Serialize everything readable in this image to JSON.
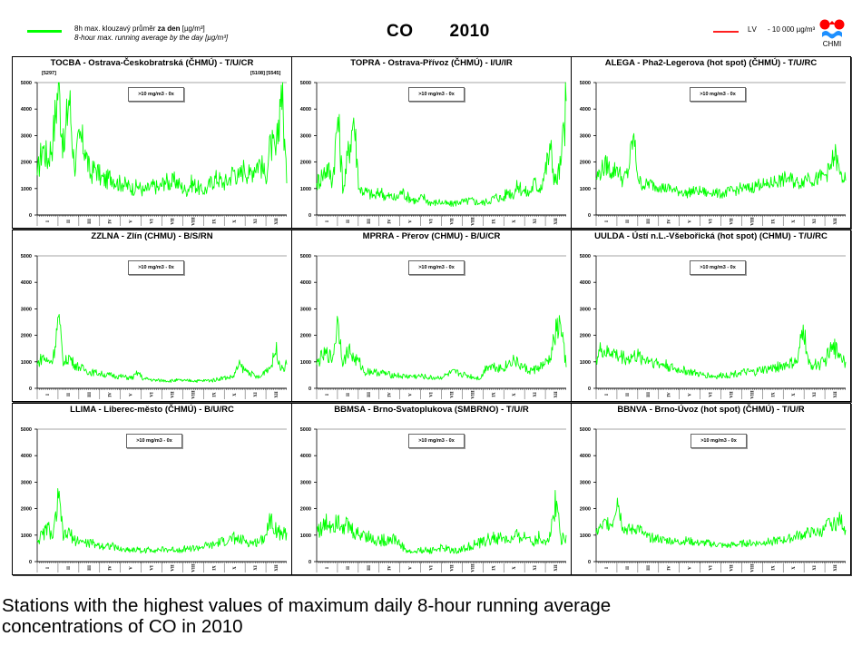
{
  "header": {
    "legend_line1_prefix": "8h max. klouzavý průměr ",
    "legend_line1_bold": "za den",
    "legend_line1_suffix": " [µg/m³]",
    "legend_line2": "8-hour max. running average  by the day  [µg/m³]",
    "pollutant": "CO",
    "year": "2010",
    "lv_label": "LV",
    "lv_value": "- 10 000 µg/m³",
    "logo_text": "CHMI",
    "series_color": "#00ff00",
    "lv_color": "#ff2020",
    "logo_red": "#ff0000",
    "logo_blue": "#1e90ff"
  },
  "caption": {
    "line1": "Stations with the highest values of maximum daily 8-hour running average",
    "line2": "concentrations of CO in 2010"
  },
  "chart_data": [
    {
      "type": "line",
      "title": "TOCBA - Ostrava-Českobratrská (ČHMÚ) - T/U/CR",
      "ylim": [
        0,
        5000
      ],
      "yticks": [
        "0",
        "1000",
        "2000",
        "3000",
        "4000",
        "5000"
      ],
      "xticks": [
        "I",
        "II",
        "III",
        "IV",
        "V",
        "VI",
        "VII",
        "VIII",
        "IX",
        "X",
        "XI",
        "XII"
      ],
      "box_text": ">10 mg/m3 - 0x",
      "annotations": [
        "[5297]",
        "[5108] [5545]"
      ],
      "series": [
        {
          "name": "8h max. running average",
          "noise": 0.28,
          "values": [
            1500,
            2600,
            2100,
            2900,
            5000,
            2300,
            4600,
            1800,
            2900,
            2500,
            1500,
            1800,
            1400,
            1300,
            1500,
            1200,
            1200,
            1100,
            1000,
            1100,
            900,
            1000,
            1100,
            1000,
            1300,
            1200,
            1300,
            1100,
            900,
            1200,
            1100,
            900,
            1000,
            1300,
            1400,
            1200,
            1300,
            1700,
            1400,
            1800,
            1500,
            1900,
            2000,
            1400,
            2700,
            2200,
            5000,
            1200
          ]
        }
      ]
    },
    {
      "type": "line",
      "title": "TOPRA - Ostrava-Přívoz (ČHMÚ) - I/U/IR",
      "ylim": [
        0,
        5000
      ],
      "yticks": [
        "0",
        "1000",
        "2000",
        "3000",
        "4000",
        "5000"
      ],
      "xticks": [
        "I",
        "II",
        "III",
        "IV",
        "V",
        "VI",
        "VII",
        "VIII",
        "IX",
        "X",
        "XI",
        "XII"
      ],
      "box_text": ">10 mg/m3 - 0x",
      "series": [
        {
          "name": "8h max. running average",
          "noise": 0.3,
          "values": [
            1200,
            1500,
            1800,
            1300,
            3700,
            900,
            2400,
            3700,
            1000,
            900,
            800,
            700,
            900,
            700,
            700,
            600,
            900,
            700,
            600,
            500,
            700,
            500,
            450,
            500,
            450,
            400,
            450,
            500,
            500,
            550,
            500,
            450,
            500,
            600,
            700,
            600,
            900,
            800,
            1100,
            900,
            800,
            1200,
            1000,
            1600,
            2500,
            1200,
            1900,
            4300
          ]
        }
      ]
    },
    {
      "type": "line",
      "title": "ALEGA - Pha2-Legerova (hot spot) (ČHMÚ) - T/U/RC",
      "ylim": [
        0,
        5000
      ],
      "yticks": [
        "0",
        "1000",
        "2000",
        "3000",
        "4000",
        "5000"
      ],
      "xticks": [
        "I",
        "II",
        "III",
        "IV",
        "V",
        "VI",
        "VII",
        "VIII",
        "IX",
        "X",
        "XI",
        "XII"
      ],
      "box_text": ">10 mg/m3 - 0x",
      "series": [
        {
          "name": "8h max. running average",
          "noise": 0.22,
          "values": [
            1400,
            1700,
            1900,
            1600,
            1800,
            1300,
            1600,
            3000,
            1300,
            1100,
            1200,
            1100,
            1100,
            1000,
            1000,
            900,
            900,
            800,
            900,
            900,
            900,
            800,
            900,
            800,
            800,
            900,
            900,
            1000,
            1000,
            1000,
            1100,
            1200,
            1100,
            1200,
            1300,
            1300,
            1400,
            1300,
            1200,
            1300,
            1500,
            1300,
            1400,
            1500,
            1700,
            2300,
            1500,
            1300
          ]
        }
      ]
    },
    {
      "type": "line",
      "title": "ZZLNA - Zlín (CHMU) - B/S/RN",
      "ylim": [
        0,
        5000
      ],
      "yticks": [
        "0",
        "1000",
        "2000",
        "3000",
        "4000",
        "5000"
      ],
      "xticks": [
        "I",
        "II",
        "III",
        "IV",
        "V",
        "VI",
        "VII",
        "VIII",
        "IX",
        "X",
        "XI",
        "XII"
      ],
      "box_text": ">10 mg/m3 - 0x",
      "series": [
        {
          "name": "8h max. running average",
          "noise": 0.22,
          "values": [
            900,
            1200,
            1000,
            1100,
            2700,
            900,
            1200,
            900,
            800,
            700,
            600,
            600,
            550,
            500,
            500,
            450,
            450,
            400,
            400,
            600,
            350,
            350,
            300,
            300,
            300,
            280,
            300,
            300,
            280,
            300,
            280,
            280,
            300,
            300,
            350,
            400,
            400,
            450,
            900,
            700,
            600,
            450,
            400,
            700,
            800,
            1500,
            700,
            900
          ]
        }
      ]
    },
    {
      "type": "line",
      "title": "MPRRA - Přerov (CHMU) - B/U/CR",
      "ylim": [
        0,
        5000
      ],
      "yticks": [
        "0",
        "1000",
        "2000",
        "3000",
        "4000",
        "5000"
      ],
      "xticks": [
        "I",
        "II",
        "III",
        "IV",
        "V",
        "VI",
        "VII",
        "VIII",
        "IX",
        "X",
        "XI",
        "XII"
      ],
      "box_text": ">10 mg/m3 - 0x",
      "series": [
        {
          "name": "8h max. running average",
          "noise": 0.24,
          "values": [
            900,
            1200,
            1300,
            1100,
            2600,
            900,
            1500,
            1100,
            1000,
            600,
            650,
            600,
            600,
            550,
            500,
            500,
            450,
            450,
            450,
            450,
            450,
            400,
            400,
            400,
            450,
            550,
            600,
            550,
            500,
            450,
            400,
            400,
            850,
            850,
            800,
            750,
            900,
            1100,
            900,
            800,
            650,
            700,
            800,
            900,
            1100,
            2100,
            2400,
            800
          ]
        }
      ]
    },
    {
      "type": "line",
      "title": "UULDA - Ústí n.L.-Všebořická (hot spot) (CHMU) - T/U/RC",
      "ylim": [
        0,
        5000
      ],
      "yticks": [
        "0",
        "1000",
        "2000",
        "3000",
        "4000",
        "5000"
      ],
      "xticks": [
        "I",
        "II",
        "III",
        "IV",
        "V",
        "VI",
        "VII",
        "VIII",
        "IX",
        "X",
        "XI",
        "XII"
      ],
      "box_text": ">10 mg/m3 - 0x",
      "series": [
        {
          "name": "8h max. running average",
          "noise": 0.25,
          "values": [
            1100,
            1500,
            1300,
            1400,
            1200,
            1200,
            1100,
            1200,
            1200,
            1100,
            1100,
            1000,
            900,
            900,
            800,
            700,
            700,
            650,
            600,
            550,
            500,
            500,
            450,
            450,
            500,
            500,
            550,
            600,
            600,
            600,
            600,
            700,
            700,
            750,
            800,
            850,
            900,
            950,
            1000,
            2400,
            900,
            900,
            900,
            1000,
            1400,
            1500,
            1300,
            1000
          ]
        }
      ]
    },
    {
      "type": "line",
      "title": "LLIMA - Liberec-město (ČHMÚ) - B/U/RC",
      "ylim": [
        0,
        5000
      ],
      "yticks": [
        "0",
        "1000",
        "2000",
        "3000",
        "4000",
        "5000"
      ],
      "xticks": [
        "I",
        "II",
        "III",
        "IV",
        "V",
        "VI",
        "VII",
        "VIII",
        "IX",
        "X",
        "XI",
        "XII"
      ],
      "box_text": ">10 mg/m3 - 0x",
      "series": [
        {
          "name": "8h max. running average",
          "noise": 0.26,
          "values": [
            800,
            1000,
            1300,
            900,
            2400,
            900,
            1100,
            800,
            800,
            700,
            700,
            650,
            600,
            600,
            600,
            500,
            450,
            450,
            450,
            450,
            400,
            450,
            450,
            450,
            450,
            450,
            450,
            450,
            500,
            500,
            500,
            550,
            600,
            600,
            700,
            750,
            800,
            900,
            800,
            800,
            700,
            700,
            800,
            1000,
            1700,
            1200,
            1000,
            1100
          ]
        }
      ]
    },
    {
      "type": "line",
      "title": "BBMSA - Brno-Svatoplukova (SMBRNO) - T/U/R",
      "ylim": [
        0,
        5000
      ],
      "yticks": [
        "0",
        "1000",
        "2000",
        "3000",
        "4000",
        "5000"
      ],
      "xticks": [
        "I",
        "II",
        "III",
        "IV",
        "V",
        "VI",
        "VII",
        "VIII",
        "IX",
        "X",
        "XI",
        "XII"
      ],
      "box_text": ">10 mg/m3 - 0x",
      "series": [
        {
          "name": "8h max. running average",
          "noise": 0.3,
          "values": [
            1300,
            1200,
            1500,
            1400,
            1700,
            1400,
            1300,
            1100,
            1000,
            1100,
            900,
            800,
            800,
            800,
            900,
            800,
            600,
            400,
            350,
            400,
            450,
            400,
            450,
            500,
            500,
            450,
            400,
            450,
            500,
            600,
            650,
            700,
            800,
            900,
            850,
            900,
            800,
            800,
            1000,
            900,
            900,
            800,
            900,
            800,
            900,
            2400,
            900,
            1000
          ]
        }
      ]
    },
    {
      "type": "line",
      "title": "BBNVA - Brno-Úvoz (hot spot) (ČHMÚ) - T/U/R",
      "ylim": [
        0,
        5000
      ],
      "yticks": [
        "0",
        "1000",
        "2000",
        "3000",
        "4000",
        "5000"
      ],
      "xticks": [
        "I",
        "II",
        "III",
        "IV",
        "V",
        "VI",
        "VII",
        "VIII",
        "IX",
        "X",
        "XI",
        "XII"
      ],
      "box_text": ">10 mg/m3 - 0x",
      "series": [
        {
          "name": "8h max. running average",
          "noise": 0.2,
          "values": [
            1100,
            1300,
            1500,
            1400,
            2400,
            1300,
            1200,
            1200,
            1300,
            1000,
            900,
            900,
            850,
            800,
            800,
            750,
            750,
            800,
            750,
            700,
            700,
            700,
            650,
            650,
            600,
            600,
            650,
            650,
            700,
            700,
            700,
            700,
            750,
            750,
            800,
            800,
            850,
            900,
            1000,
            1000,
            1100,
            1100,
            1100,
            1200,
            1500,
            1400,
            1600,
            1200
          ]
        }
      ]
    }
  ]
}
